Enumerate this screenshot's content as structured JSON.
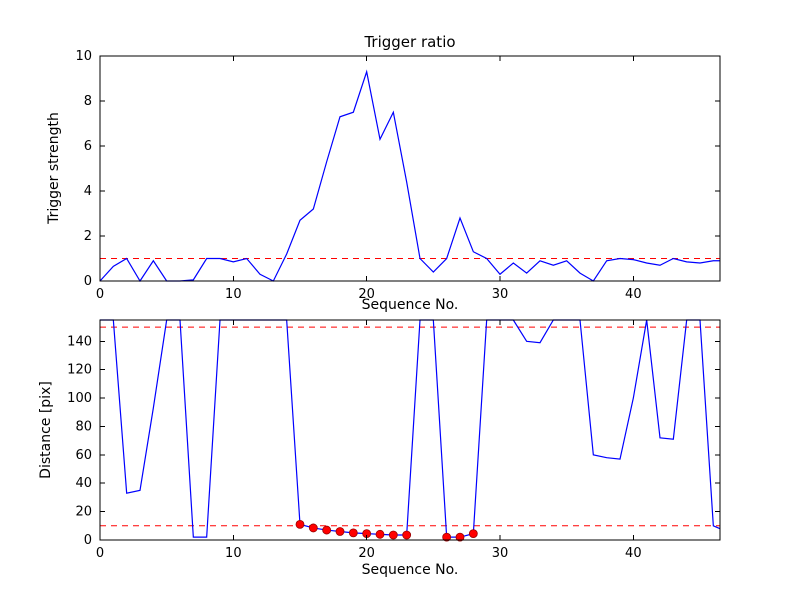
{
  "figure": {
    "background": "#ffffff",
    "line_color": "#0000ff",
    "threshold_color": "#ff0000",
    "marker_color": "#ff0000"
  },
  "chart_data": [
    {
      "type": "line",
      "name": "trigger-strength-line",
      "title": "Trigger ratio",
      "xlabel": "Sequence No.",
      "ylabel": "Trigger strength",
      "xlim": [
        0,
        46.5
      ],
      "ylim": [
        0,
        10
      ],
      "xticks": [
        0,
        10,
        20,
        30,
        40
      ],
      "yticks": [
        0,
        2,
        4,
        6,
        8,
        10
      ],
      "grid": false,
      "line_color": "#0000ff",
      "hlines": [
        {
          "y": 1.0,
          "color": "#ff0000",
          "style": "dashed"
        }
      ],
      "x": [
        0,
        1,
        2,
        3,
        4,
        5,
        6,
        7,
        8,
        9,
        10,
        11,
        12,
        13,
        14,
        15,
        16,
        17,
        18,
        19,
        20,
        21,
        22,
        23,
        24,
        25,
        26,
        27,
        28,
        29,
        30,
        31,
        32,
        33,
        34,
        35,
        36,
        37,
        38,
        39,
        40,
        41,
        42,
        43,
        44,
        45,
        46,
        46.5
      ],
      "values": [
        0,
        0.65,
        1,
        0,
        0.9,
        0,
        0,
        0.05,
        1,
        1,
        0.85,
        1,
        0.3,
        0,
        1.2,
        2.7,
        3.2,
        5.3,
        7.3,
        7.5,
        9.3,
        6.3,
        7.5,
        4.4,
        1,
        0.4,
        1,
        2.8,
        1.3,
        1,
        0.3,
        0.8,
        0.35,
        0.9,
        0.7,
        0.9,
        0.35,
        0,
        0.9,
        1,
        0.95,
        0.8,
        0.7,
        1,
        0.85,
        0.8,
        0.9,
        0.9
      ]
    },
    {
      "type": "line",
      "name": "distance-line",
      "title": "",
      "xlabel": "Sequence No.",
      "ylabel": "Distance [pix]",
      "xlim": [
        0,
        46.5
      ],
      "ylim": [
        0,
        155
      ],
      "xticks": [
        0,
        10,
        20,
        30,
        40
      ],
      "yticks": [
        0,
        20,
        40,
        60,
        80,
        100,
        120,
        140
      ],
      "grid": false,
      "line_color": "#0000ff",
      "hlines": [
        {
          "y": 150,
          "color": "#ff0000",
          "style": "dashed"
        },
        {
          "y": 10,
          "color": "#ff0000",
          "style": "dashed"
        }
      ],
      "x": [
        0,
        1,
        2,
        3,
        4,
        5,
        6,
        7,
        8,
        9,
        10,
        11,
        12,
        13,
        14,
        15,
        16,
        17,
        18,
        19,
        20,
        21,
        22,
        23,
        24,
        25,
        26,
        27,
        28,
        29,
        30,
        31,
        32,
        33,
        34,
        35,
        36,
        37,
        38,
        39,
        40,
        41,
        42,
        43,
        44,
        45,
        46,
        46.5
      ],
      "values": [
        155,
        155,
        33,
        35,
        93,
        155,
        155,
        2,
        2,
        155,
        155,
        155,
        155,
        155,
        155,
        11,
        8.5,
        7,
        6,
        5,
        4.5,
        4,
        3.5,
        3.5,
        155,
        155,
        2,
        2,
        4.5,
        155,
        155,
        155,
        140,
        139,
        155,
        155,
        155,
        60,
        58,
        57,
        100,
        155,
        72,
        71,
        155,
        155,
        10,
        8
      ],
      "markers": {
        "color": "#ff0000",
        "edge_color": "#990000",
        "points": [
          [
            15,
            11
          ],
          [
            16,
            8.5
          ],
          [
            17,
            7
          ],
          [
            18,
            6
          ],
          [
            19,
            5
          ],
          [
            20,
            4.5
          ],
          [
            21,
            4
          ],
          [
            22,
            3.5
          ],
          [
            23,
            3.5
          ],
          [
            26,
            2
          ],
          [
            27,
            2
          ],
          [
            28,
            4.5
          ]
        ]
      }
    }
  ]
}
